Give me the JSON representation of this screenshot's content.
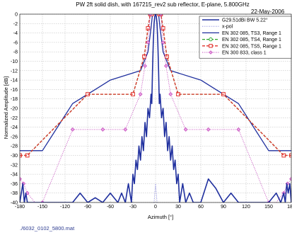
{
  "chart_data": {
    "type": "line",
    "title": "PW 2ft solid dish, with 167215_rev2 sub reflector, E-plane,  5.800GHz",
    "date": "22-May-2006",
    "xlabel": "Azimuth [°]",
    "ylabel": "Normalized Amplitude [dB]",
    "footer": "./6032_0102_5800.mat",
    "xlim": [
      -180,
      180
    ],
    "ylim": [
      -40,
      0
    ],
    "xticks": [
      "-180",
      "-150",
      "-120",
      "-90",
      "-60",
      "-30",
      "0",
      "30",
      "60",
      "90",
      "120",
      "150",
      "180"
    ],
    "yticks": [
      "0",
      "-2",
      "-4",
      "-6",
      "-8",
      "-10",
      "-12",
      "-14",
      "-16",
      "-18",
      "-20",
      "-22",
      "-24",
      "-26",
      "-28",
      "-30",
      "-32",
      "-34",
      "-36",
      "-38",
      "-40"
    ],
    "grid": true,
    "legend_position": "top-right",
    "colors": {
      "copol": "#1f2f9e",
      "xpol": "#7a7ad8",
      "ts3": "#1f2f9e",
      "ts4": "#2ca82c",
      "ts5": "#e0302a",
      "class1": "#c040b8"
    },
    "series": [
      {
        "name": "G29.51dBi BW 5.22°",
        "style": "solid",
        "x": [
          -180,
          -176,
          -174,
          -172,
          -170,
          -168,
          -166,
          -162,
          -160,
          -150,
          -140,
          -120,
          -110,
          -100,
          -90,
          -80,
          -70,
          -60,
          -50,
          -45,
          -40,
          -36,
          -32,
          -30,
          -28,
          -26,
          -24,
          -22,
          -20,
          -18,
          -16,
          -14,
          -12,
          -10,
          -8,
          -6,
          -5,
          -4,
          -3,
          -2,
          -1,
          0,
          1,
          2,
          3,
          4,
          5,
          6,
          8,
          10,
          12,
          14,
          16,
          18,
          20,
          22,
          24,
          26,
          28,
          30,
          32,
          36,
          40,
          45,
          50,
          55,
          60,
          70,
          80,
          90,
          100,
          110,
          120,
          140,
          150,
          160,
          166,
          170,
          172,
          174,
          176,
          178,
          180
        ],
        "y": [
          -40,
          -36,
          -40,
          -38,
          -40,
          -40,
          -40,
          -40,
          -40,
          -40,
          -40,
          -40,
          -40,
          -38,
          -40,
          -39,
          -40,
          -38,
          -40,
          -38,
          -40,
          -36,
          -40,
          -34,
          -36,
          -31,
          -33,
          -28,
          -31,
          -26,
          -29,
          -23,
          -26,
          -20,
          -22,
          -17,
          -19,
          -12,
          -6,
          -2,
          -0.5,
          0,
          -0.5,
          -2,
          -6,
          -12,
          -19,
          -17,
          -22,
          -20,
          -26,
          -23,
          -29,
          -26,
          -31,
          -28,
          -33,
          -31,
          -36,
          -34,
          -40,
          -36,
          -40,
          -38,
          -40,
          -40,
          -40,
          -35,
          -37,
          -40,
          -38,
          -40,
          -40,
          -40,
          -40,
          -38,
          -40,
          -38,
          -40,
          -36,
          -38,
          -36,
          -40
        ]
      },
      {
        "name": "x-pol",
        "style": "dotted",
        "x": [
          -2,
          -1,
          0,
          1,
          2
        ],
        "y": [
          -40,
          -38,
          -36,
          -38,
          -40
        ]
      },
      {
        "name": "EN 302 085, TS3, Range 1",
        "style": "solid",
        "x": [
          -180,
          -170,
          -150,
          -130,
          -110,
          -80,
          -60,
          -20,
          -10,
          -6,
          -4,
          4,
          6,
          10,
          20,
          60,
          80,
          110,
          130,
          150,
          170,
          180
        ],
        "y": [
          -29,
          -29,
          -29,
          -24,
          -19,
          -16,
          -14,
          -12,
          -8,
          -3,
          0,
          0,
          -3,
          -8,
          -12,
          -14,
          -16,
          -19,
          -24,
          -29,
          -29,
          -29
        ]
      },
      {
        "name": "EN 302 085, TS4, Range 1",
        "style": "dashed",
        "x": [
          -180,
          -170,
          -90,
          -30,
          -15,
          -10,
          -7,
          -5,
          5,
          7,
          10,
          15,
          30,
          90,
          170,
          180
        ],
        "y": [
          -30,
          -30,
          -17,
          -17,
          -9,
          -3,
          0,
          0,
          0,
          0,
          -3,
          -9,
          -17,
          -17,
          -30,
          -30
        ],
        "markers": [
          -180,
          -170,
          -90,
          -30,
          -15,
          -10,
          -7,
          -5,
          5,
          7,
          10,
          15,
          30,
          90,
          170,
          180
        ]
      },
      {
        "name": "EN 302 085, TS5, Range 1",
        "style": "dashed",
        "x": [
          -180,
          -170,
          -90,
          -30,
          -15,
          -10,
          -7,
          -5,
          5,
          7,
          10,
          15,
          30,
          90,
          170,
          180
        ],
        "y": [
          -30,
          -30,
          -17,
          -17,
          -9,
          -3,
          0,
          0,
          0,
          0,
          -3,
          -9,
          -17,
          -17,
          -30,
          -30
        ]
      },
      {
        "name": "EN 300 833, class 1",
        "style": "dotted",
        "x": [
          -180,
          -175,
          -170,
          -160,
          -150,
          -110,
          -70,
          -40,
          -20,
          -14,
          -10,
          -7,
          7,
          10,
          14,
          20,
          40,
          70,
          110,
          150,
          160,
          170,
          175,
          180
        ],
        "y": [
          -35,
          -36,
          -38,
          -40,
          -40,
          -24.5,
          -24.5,
          -24.5,
          -17,
          -11,
          -6,
          0,
          0,
          -6,
          -11,
          -17,
          -24.5,
          -24.5,
          -24.5,
          -40,
          -40,
          -38,
          -36,
          -35
        ],
        "markers": [
          -180,
          -175,
          -170,
          -150,
          -110,
          -70,
          -40,
          -20,
          -14,
          -10,
          -7,
          7,
          10,
          14,
          20,
          40,
          70,
          110,
          150,
          170,
          175,
          180
        ]
      }
    ]
  }
}
